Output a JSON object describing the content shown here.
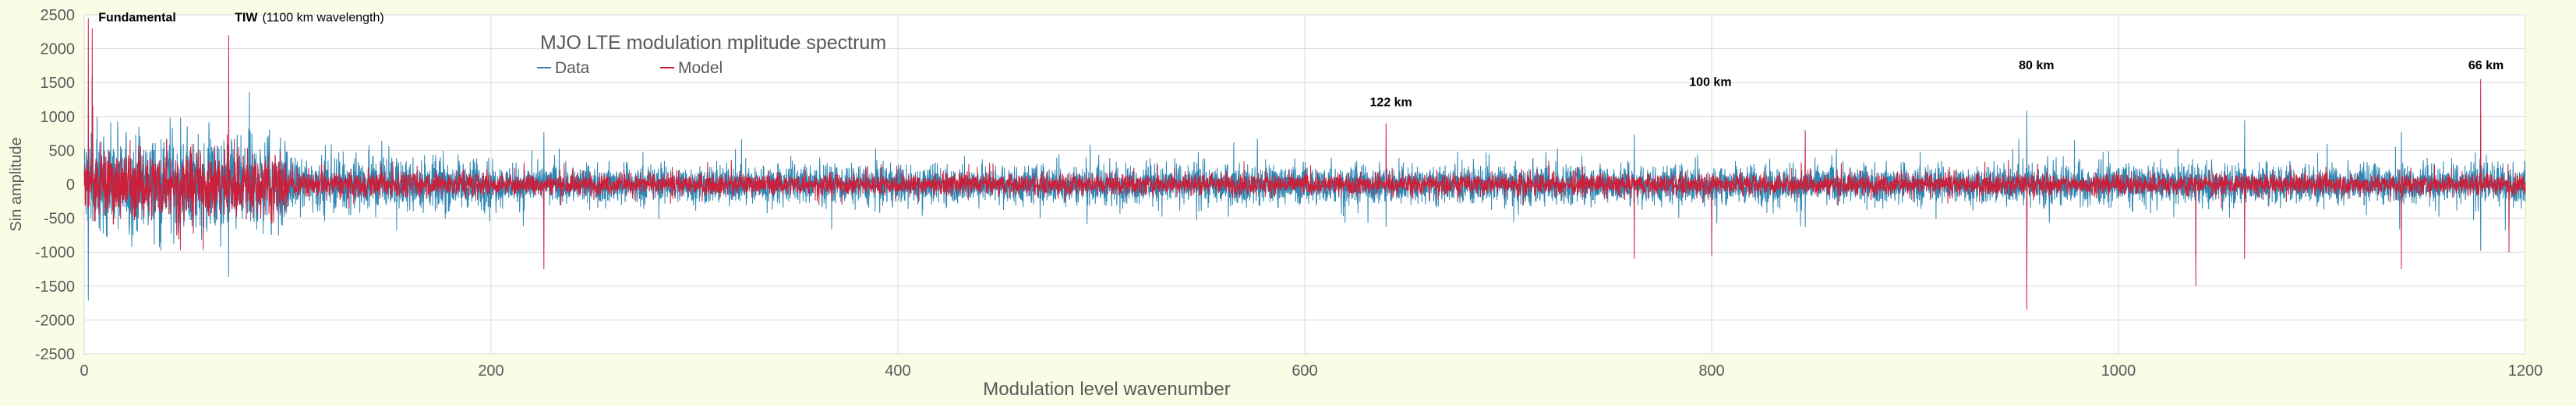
{
  "chart_data": {
    "type": "line",
    "title": "MJO LTE modulation mplitude spectrum",
    "xlabel": "Modulation level  wavenumber",
    "ylabel": "Sin amplitude",
    "xlim": [
      0,
      1200
    ],
    "ylim": [
      -2500,
      2500
    ],
    "xticks": [
      0,
      200,
      400,
      600,
      800,
      1000,
      1200
    ],
    "yticks": [
      2500,
      2000,
      1500,
      1000,
      500,
      0,
      -500,
      -1000,
      -1500,
      -2000,
      -2500
    ],
    "grid": true,
    "legend_position": "top-center",
    "colors": {
      "background": "#fbfce6",
      "plot_bg": "#ffffff",
      "data": "#2e86b3",
      "model": "#cc1f3a",
      "grid": "#d9d9d9"
    },
    "series": [
      {
        "name": "Data",
        "color": "#2e86b3",
        "typical_amplitude": 600,
        "envelope_note": "largest below wavenumber 100, roughly +/-2000"
      },
      {
        "name": "Model",
        "color": "#cc1f3a",
        "typical_amplitude": 300
      }
    ],
    "peaks": [
      {
        "x": 2,
        "y": 2450,
        "min": -2450
      },
      {
        "x": 4,
        "y": 2300,
        "min": -2200
      },
      {
        "x": 71,
        "y": 2200,
        "min": -1950
      },
      {
        "x": 226,
        "y": 1100,
        "min": -1250
      },
      {
        "x": 640,
        "y": 900,
        "min": -900
      },
      {
        "x": 762,
        "y": 1050,
        "min": -1100
      },
      {
        "x": 800,
        "y": 1050,
        "min": -1050
      },
      {
        "x": 846,
        "y": 800,
        "min": -900
      },
      {
        "x": 955,
        "y": 1550,
        "min": -1850
      },
      {
        "x": 1038,
        "y": 1100,
        "min": -1500
      },
      {
        "x": 1062,
        "y": 1350,
        "min": -1100
      },
      {
        "x": 1139,
        "y": 1100,
        "min": -1250
      },
      {
        "x": 1178,
        "y": 1550,
        "min": -1400
      },
      {
        "x": 1192,
        "y": 1100,
        "min": -1000
      }
    ],
    "annotations": [
      {
        "text": "Fundamental",
        "note": "",
        "x": 7,
        "y": 2400
      },
      {
        "text": "TIW",
        "note": "(1100 km wavelength)",
        "x": 74,
        "y": 2400
      },
      {
        "text": "122 km",
        "note": "",
        "x": 632,
        "y": 1150
      },
      {
        "text": "100 km",
        "note": "",
        "x": 789,
        "y": 1450
      },
      {
        "text": "80 km",
        "note": "",
        "x": 951,
        "y": 1700
      },
      {
        "text": "66 km",
        "note": "",
        "x": 1172,
        "y": 1700
      }
    ]
  }
}
